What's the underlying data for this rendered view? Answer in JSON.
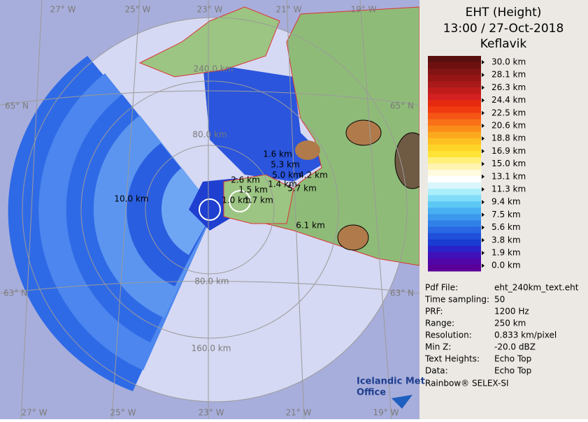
{
  "header": {
    "title": "EHT (Height)",
    "time": "13:00 / 27-Oct-2018",
    "station": "Keflavik"
  },
  "legend": {
    "labels": [
      "30.0 km",
      "28.1 km",
      "26.3 km",
      "24.4 km",
      "22.5 km",
      "20.6 km",
      "18.8 km",
      "16.9 km",
      "15.0 km",
      "13.1 km",
      "11.3 km",
      "9.4 km",
      "7.5 km",
      "5.6 km",
      "3.8 km",
      "1.9 km",
      "0.0 km"
    ]
  },
  "info": {
    "rows": [
      [
        "Pdf File:",
        "eht_240km_text.eht"
      ],
      [
        "Time sampling:",
        "50"
      ],
      [
        "PRF:",
        "1200 Hz"
      ],
      [
        "Range:",
        "250 km"
      ],
      [
        "Resolution:",
        "0.833 km/pixel"
      ],
      [
        "Min Z:",
        "-20.0 dBZ"
      ],
      [
        "Text Heights:",
        "Echo Top"
      ],
      [
        "Data:",
        "Echo Top"
      ]
    ],
    "footer": "Rainbow® SELEX-SI"
  },
  "map": {
    "lon_top": [
      "27° W",
      "25° W",
      "23° W",
      "21° W",
      "19° W"
    ],
    "lon_bottom": [
      "27° W",
      "25° W",
      "23° W",
      "21° W",
      "19° W"
    ],
    "lat_left": [
      "65° N",
      "63° N"
    ],
    "lat_right": [
      "65° N",
      "63° N"
    ],
    "range_labels": [
      "240.0 km",
      "80.0 km",
      "80.0 km",
      "160.0 km"
    ],
    "echo_heights": [
      "1.6 km",
      "5.3 km",
      "5.0 km",
      "4.2 km",
      "2.6 km",
      "1.5 km",
      "1.4 km",
      "5.7 km",
      "1.0 km",
      "1.7 km",
      "10.0 km",
      "6.1 km"
    ]
  },
  "logo": [
    "Icelandic Met",
    "Office"
  ]
}
